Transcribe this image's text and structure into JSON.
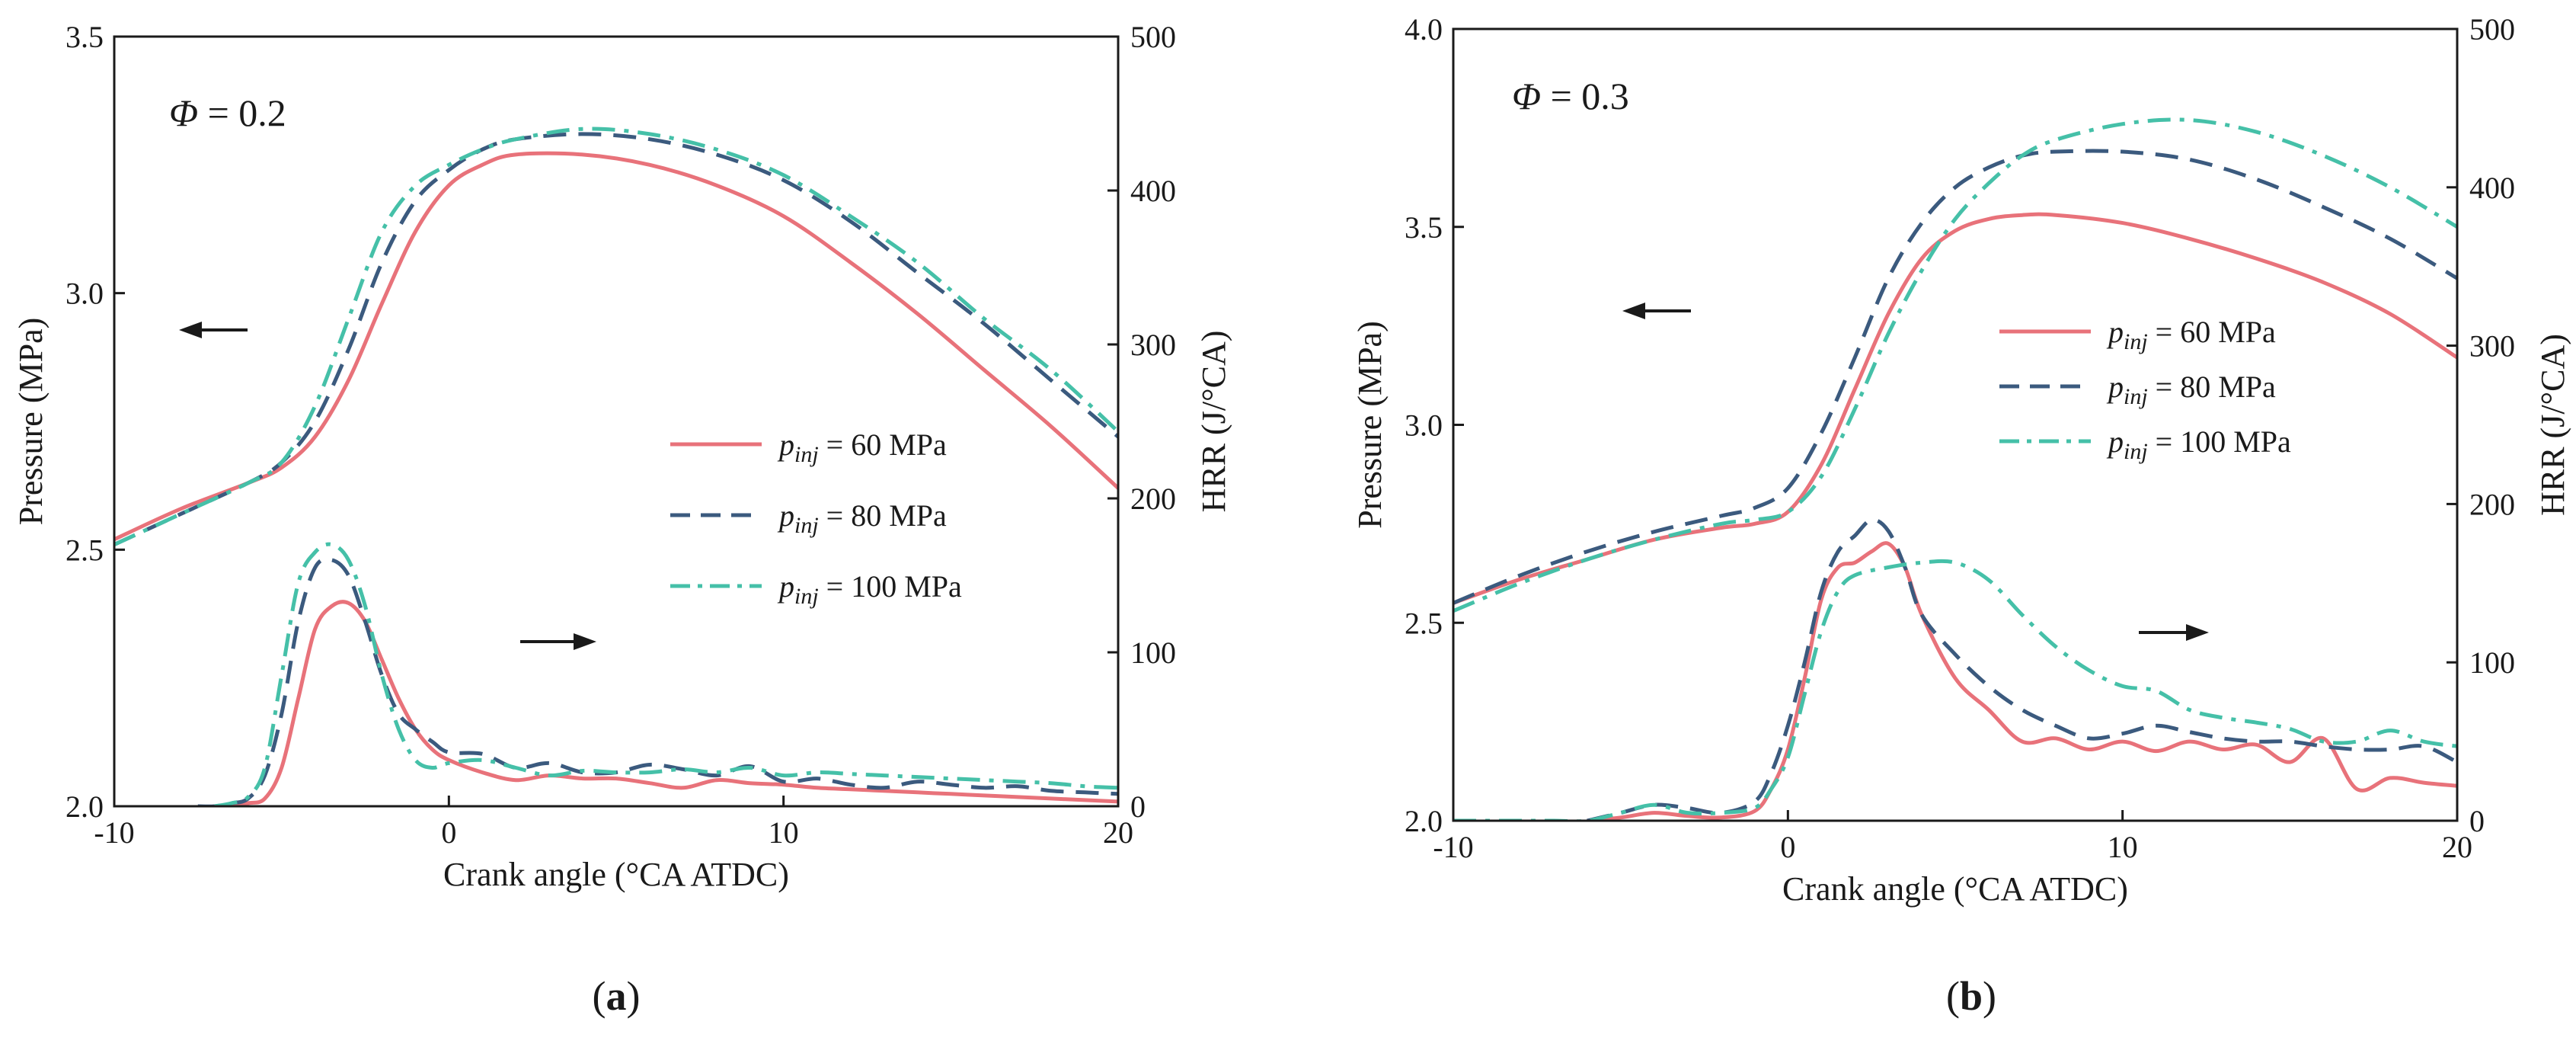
{
  "figure": {
    "panel_labels": [
      "(a)",
      "(b)"
    ]
  },
  "colors": {
    "p60": "#e8727a",
    "p80": "#3b5a7e",
    "p100": "#45c0a8",
    "axis": "#1a1a1a"
  },
  "chart_data": [
    {
      "type": "line",
      "panel": "(a)",
      "annotation": "Φ = 0.2",
      "xlabel": "Crank angle (°CA ATDC)",
      "ylabel_left": "Pressure (MPa)",
      "ylabel_right": "HRR  (J/°CA)",
      "xlim": [
        -10,
        20
      ],
      "ylim_left": [
        2.0,
        3.5
      ],
      "ylim_right": [
        0,
        500
      ],
      "xticks": [
        -10,
        0,
        10,
        20
      ],
      "yticks_left": [
        2.0,
        2.5,
        3.0,
        3.5
      ],
      "yticks_right": [
        0,
        100,
        200,
        300,
        400,
        500
      ],
      "tick_labels_x": [
        "-10",
        "0",
        "10",
        "20"
      ],
      "tick_labels_left": [
        "2.0",
        "2.5",
        "3.0",
        "3.5"
      ],
      "tick_labels_right": [
        "0",
        "100",
        "200",
        "300",
        "400",
        "500"
      ],
      "legend": [
        {
          "prefix": "p",
          "sub": "inj",
          "suffix": " = 60 MPa",
          "style": "solid",
          "color_key": "p60"
        },
        {
          "prefix": "p",
          "sub": "inj",
          "suffix": " = 80 MPa",
          "style": "dash",
          "color_key": "p80"
        },
        {
          "prefix": "p",
          "sub": "inj",
          "suffix": " = 100 MPa",
          "style": "dashdot",
          "color_key": "p100"
        }
      ],
      "series": [
        {
          "name": "p_inj = 60 MPa (pressure)",
          "axis": "left",
          "style": "solid",
          "color_key": "p60",
          "x": [
            -10,
            -8,
            -6,
            -5,
            -4,
            -3,
            -2,
            -1,
            0,
            1,
            2,
            4,
            6,
            8,
            10,
            12,
            14,
            16,
            18,
            20
          ],
          "y": [
            2.52,
            2.58,
            2.63,
            2.66,
            2.72,
            2.83,
            2.98,
            3.12,
            3.21,
            3.25,
            3.27,
            3.27,
            3.25,
            3.21,
            3.15,
            3.06,
            2.96,
            2.85,
            2.74,
            2.62
          ]
        },
        {
          "name": "p_inj = 80 MPa (pressure)",
          "axis": "left",
          "style": "dash",
          "color_key": "p80",
          "x": [
            -10,
            -8,
            -6,
            -5,
            -4,
            -3,
            -2,
            -1,
            0,
            1,
            2,
            4,
            6,
            8,
            10,
            12,
            14,
            16,
            18,
            20
          ],
          "y": [
            2.51,
            2.57,
            2.63,
            2.67,
            2.75,
            2.89,
            3.06,
            3.18,
            3.24,
            3.28,
            3.3,
            3.31,
            3.3,
            3.27,
            3.22,
            3.14,
            3.04,
            2.94,
            2.83,
            2.72
          ]
        },
        {
          "name": "p_inj = 100 MPa (pressure)",
          "axis": "left",
          "style": "dashdot",
          "color_key": "p100",
          "x": [
            -10,
            -8,
            -6,
            -5,
            -4,
            -3,
            -2,
            -1,
            0,
            1,
            2,
            4,
            6,
            8,
            10,
            12,
            14,
            16,
            18,
            20
          ],
          "y": [
            2.51,
            2.57,
            2.63,
            2.67,
            2.78,
            2.95,
            3.12,
            3.21,
            3.25,
            3.28,
            3.3,
            3.32,
            3.31,
            3.28,
            3.23,
            3.15,
            3.06,
            2.95,
            2.85,
            2.73
          ]
        },
        {
          "name": "p_inj = 60 MPa (HRR)",
          "axis": "right",
          "style": "solid",
          "color_key": "p60",
          "x": [
            -7,
            -6.5,
            -6,
            -5.5,
            -5,
            -4.5,
            -4,
            -3.5,
            -3,
            -2.5,
            -2,
            -1.5,
            -1,
            -0.5,
            0,
            1,
            2,
            3,
            4,
            5,
            6,
            7,
            8,
            9,
            10,
            11,
            12,
            13,
            14,
            15,
            16,
            17,
            18,
            19,
            20
          ],
          "y": [
            0,
            0,
            2,
            5,
            25,
            70,
            115,
            130,
            132,
            120,
            95,
            70,
            50,
            37,
            30,
            22,
            17,
            20,
            18,
            18,
            15,
            12,
            17,
            15,
            14,
            12,
            11,
            10,
            9,
            8,
            7,
            6,
            5,
            4,
            3
          ]
        },
        {
          "name": "p_inj = 80 MPa (HRR)",
          "axis": "right",
          "style": "dash",
          "color_key": "p80",
          "x": [
            -7.5,
            -7,
            -6.5,
            -6,
            -5.5,
            -5,
            -4.5,
            -4,
            -3.5,
            -3,
            -2.5,
            -2,
            -1.5,
            -1,
            -0.5,
            0,
            1,
            2,
            3,
            4,
            5,
            6,
            7,
            8,
            9,
            10,
            11,
            12,
            13,
            14,
            15,
            16,
            17,
            18,
            19,
            20
          ],
          "y": [
            0,
            0,
            2,
            5,
            20,
            60,
            120,
            155,
            160,
            150,
            120,
            85,
            60,
            50,
            42,
            35,
            34,
            25,
            28,
            22,
            22,
            27,
            24,
            20,
            26,
            16,
            18,
            14,
            12,
            16,
            14,
            12,
            13,
            10,
            9,
            8
          ]
        },
        {
          "name": "p_inj = 100 MPa (HRR)",
          "axis": "right",
          "style": "dashdot",
          "color_key": "p100",
          "x": [
            -7,
            -6.5,
            -6,
            -5.5,
            -5,
            -4.5,
            -4,
            -3.5,
            -3,
            -2.5,
            -2,
            -1.5,
            -1,
            -0.5,
            0,
            1,
            2,
            3,
            4,
            5,
            6,
            7,
            8,
            9,
            10,
            11,
            12,
            13,
            14,
            15,
            16,
            17,
            18,
            19,
            20
          ],
          "y": [
            0,
            2,
            6,
            25,
            85,
            145,
            165,
            170,
            160,
            130,
            85,
            50,
            30,
            25,
            28,
            30,
            25,
            20,
            23,
            22,
            22,
            24,
            22,
            25,
            20,
            22,
            21,
            20,
            19,
            18,
            17,
            16,
            15,
            13,
            12
          ]
        }
      ]
    },
    {
      "type": "line",
      "panel": "(b)",
      "annotation": "Φ = 0.3",
      "xlabel": "Crank angle (°CA ATDC)",
      "ylabel_left": "Pressure (MPa)",
      "ylabel_right": "HRR  (J/°CA)",
      "xlim": [
        -10,
        20
      ],
      "ylim_left": [
        2.0,
        4.0
      ],
      "ylim_right": [
        0,
        500
      ],
      "xticks": [
        -10,
        0,
        10,
        20
      ],
      "yticks_left": [
        2.0,
        2.5,
        3.0,
        3.5,
        4.0
      ],
      "yticks_right": [
        0,
        100,
        200,
        300,
        400,
        500
      ],
      "tick_labels_x": [
        "-10",
        "0",
        "10",
        "20"
      ],
      "tick_labels_left": [
        "2.0",
        "2.5",
        "3.0",
        "3.5",
        "4.0"
      ],
      "tick_labels_right": [
        "0",
        "100",
        "200",
        "300",
        "400",
        "500"
      ],
      "legend": [
        {
          "prefix": "p",
          "sub": "inj",
          "suffix": " = 60 MPa",
          "style": "solid",
          "color_key": "p60"
        },
        {
          "prefix": "p",
          "sub": "inj",
          "suffix": " = 80 MPa",
          "style": "dash",
          "color_key": "p80"
        },
        {
          "prefix": "p",
          "sub": "inj",
          "suffix": " = 100 MPa",
          "style": "dashdot",
          "color_key": "p100"
        }
      ],
      "series": [
        {
          "name": "p_inj = 60 MPa (pressure)",
          "axis": "left",
          "style": "solid",
          "color_key": "p60",
          "x": [
            -10,
            -8,
            -6,
            -4,
            -2,
            -1,
            0,
            1,
            2,
            3,
            4,
            5,
            6,
            7,
            8,
            10,
            12,
            14,
            16,
            18,
            20
          ],
          "y": [
            2.55,
            2.61,
            2.66,
            2.71,
            2.74,
            2.75,
            2.78,
            2.9,
            3.09,
            3.28,
            3.42,
            3.49,
            3.52,
            3.53,
            3.53,
            3.51,
            3.47,
            3.42,
            3.36,
            3.28,
            3.17
          ]
        },
        {
          "name": "p_inj = 80 MPa (pressure)",
          "axis": "left",
          "style": "dash",
          "color_key": "p80",
          "x": [
            -10,
            -8,
            -6,
            -4,
            -2,
            -1,
            0,
            1,
            2,
            3,
            4,
            5,
            6,
            7,
            8,
            10,
            12,
            14,
            16,
            18,
            20
          ],
          "y": [
            2.55,
            2.62,
            2.68,
            2.73,
            2.77,
            2.79,
            2.84,
            2.98,
            3.17,
            3.37,
            3.51,
            3.6,
            3.65,
            3.68,
            3.69,
            3.69,
            3.67,
            3.62,
            3.55,
            3.47,
            3.37
          ]
        },
        {
          "name": "p_inj = 100 MPa (pressure)",
          "axis": "left",
          "style": "dashdot",
          "color_key": "p100",
          "x": [
            -10,
            -8,
            -6,
            -4,
            -2,
            -1,
            0,
            1,
            2,
            3,
            4,
            5,
            6,
            7,
            8,
            10,
            12,
            14,
            16,
            18,
            20
          ],
          "y": [
            2.53,
            2.6,
            2.66,
            2.71,
            2.75,
            2.76,
            2.78,
            2.87,
            3.04,
            3.23,
            3.39,
            3.52,
            3.61,
            3.68,
            3.72,
            3.76,
            3.77,
            3.74,
            3.68,
            3.6,
            3.5
          ]
        },
        {
          "name": "p_inj = 60 MPa (HRR)",
          "axis": "right",
          "style": "solid",
          "color_key": "p60",
          "x": [
            -6,
            -5,
            -4,
            -3,
            -2,
            -1,
            -0.5,
            0,
            0.5,
            1,
            1.5,
            2,
            2.5,
            3,
            3.5,
            4,
            5,
            6,
            7,
            8,
            9,
            10,
            11,
            12,
            13,
            14,
            15,
            16,
            17,
            18,
            19,
            20
          ],
          "y": [
            0,
            2,
            5,
            3,
            2,
            6,
            20,
            45,
            90,
            140,
            160,
            163,
            170,
            175,
            160,
            130,
            90,
            70,
            50,
            52,
            45,
            50,
            44,
            50,
            45,
            48,
            37,
            52,
            20,
            27,
            24,
            22
          ]
        },
        {
          "name": "p_inj = 80 MPa (HRR)",
          "axis": "right",
          "style": "dash",
          "color_key": "p80",
          "x": [
            -6,
            -5,
            -4,
            -3,
            -2,
            -1,
            -0.5,
            0,
            0.5,
            1,
            1.5,
            2,
            2.5,
            3,
            3.5,
            4,
            5,
            6,
            7,
            8,
            9,
            10,
            11,
            12,
            13,
            14,
            15,
            16,
            17,
            18,
            19,
            20
          ],
          "y": [
            0,
            5,
            10,
            8,
            5,
            12,
            30,
            60,
            100,
            145,
            170,
            180,
            190,
            183,
            160,
            130,
            105,
            85,
            70,
            60,
            52,
            55,
            60,
            56,
            52,
            50,
            50,
            47,
            45,
            45,
            47,
            37
          ]
        },
        {
          "name": "p_inj = 100 MPa (HRR)",
          "axis": "right",
          "style": "dashdot",
          "color_key": "p100",
          "x": [
            -10,
            -9,
            -8,
            -7,
            -6,
            -5,
            -4,
            -3,
            -2,
            -1,
            -0.5,
            0,
            0.5,
            1,
            1.5,
            2,
            3,
            4,
            5,
            6,
            7,
            8,
            9,
            10,
            11,
            12,
            13,
            14,
            15,
            16,
            17,
            18,
            19,
            20
          ],
          "y": [
            0,
            0,
            0,
            0,
            0,
            5,
            10,
            5,
            5,
            8,
            20,
            40,
            80,
            120,
            145,
            155,
            160,
            163,
            163,
            152,
            130,
            110,
            95,
            85,
            82,
            70,
            65,
            62,
            58,
            50,
            50,
            57,
            50,
            47
          ]
        }
      ]
    }
  ]
}
